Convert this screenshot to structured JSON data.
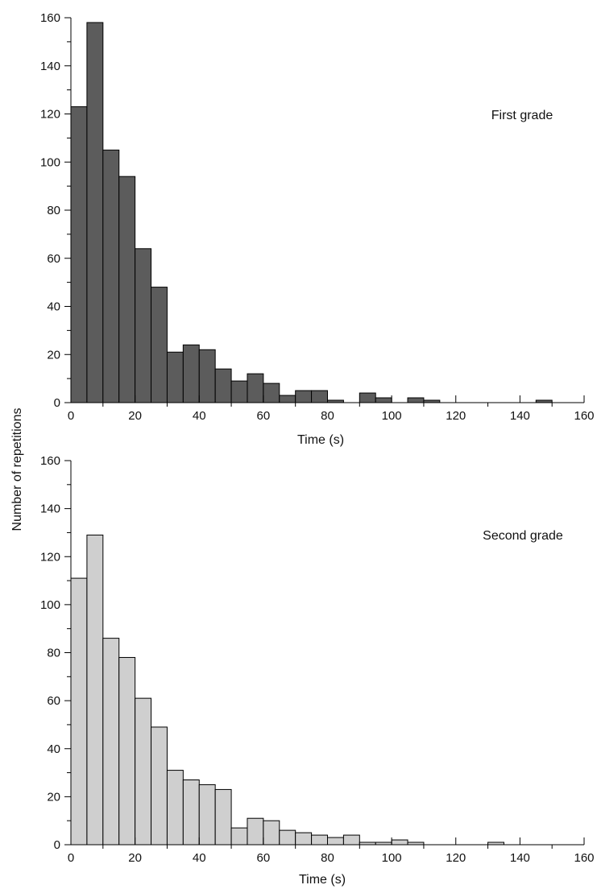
{
  "shared": {
    "ylabel": "Number of repetitions"
  },
  "chart_data": [
    {
      "type": "bar",
      "title": "First grade",
      "xlabel": "Time (s)",
      "ylabel": "Number of repetitions",
      "xlim": [
        0,
        160
      ],
      "ylim": [
        0,
        160
      ],
      "xticks": [
        0,
        20,
        40,
        60,
        80,
        100,
        120,
        140,
        160
      ],
      "yticks": [
        0,
        20,
        40,
        60,
        80,
        100,
        120,
        140,
        160
      ],
      "bin_width": 5,
      "bin_starts": [
        0,
        5,
        10,
        15,
        20,
        25,
        30,
        35,
        40,
        45,
        50,
        55,
        60,
        65,
        70,
        75,
        80,
        85,
        90,
        95,
        100,
        105,
        110,
        115,
        120,
        125,
        130,
        135,
        140,
        145,
        150
      ],
      "values": [
        123,
        158,
        105,
        94,
        64,
        48,
        21,
        24,
        22,
        14,
        9,
        12,
        8,
        3,
        5,
        5,
        1,
        0,
        4,
        2,
        0,
        2,
        1,
        0,
        0,
        0,
        0,
        0,
        0,
        1,
        0
      ],
      "color": "#5c5c5c",
      "grid": false,
      "legend": "none"
    },
    {
      "type": "bar",
      "title": "Second grade",
      "xlabel": "Time (s)",
      "ylabel": "Number of repetitions",
      "xlim": [
        0,
        160
      ],
      "ylim": [
        0,
        160
      ],
      "xticks": [
        0,
        20,
        40,
        60,
        80,
        100,
        120,
        140,
        160
      ],
      "yticks": [
        0,
        20,
        40,
        60,
        80,
        100,
        120,
        140,
        160
      ],
      "bin_width": 5,
      "bin_starts": [
        0,
        5,
        10,
        15,
        20,
        25,
        30,
        35,
        40,
        45,
        50,
        55,
        60,
        65,
        70,
        75,
        80,
        85,
        90,
        95,
        100,
        105,
        110,
        115,
        120,
        125,
        130,
        135,
        140,
        145,
        150
      ],
      "values": [
        111,
        129,
        86,
        78,
        61,
        49,
        31,
        27,
        25,
        23,
        7,
        11,
        10,
        6,
        5,
        4,
        3,
        4,
        1,
        1,
        2,
        1,
        0,
        0,
        0,
        0,
        1,
        0,
        0,
        0,
        0
      ],
      "color": "#cfcfcf",
      "grid": false,
      "legend": "none"
    }
  ]
}
